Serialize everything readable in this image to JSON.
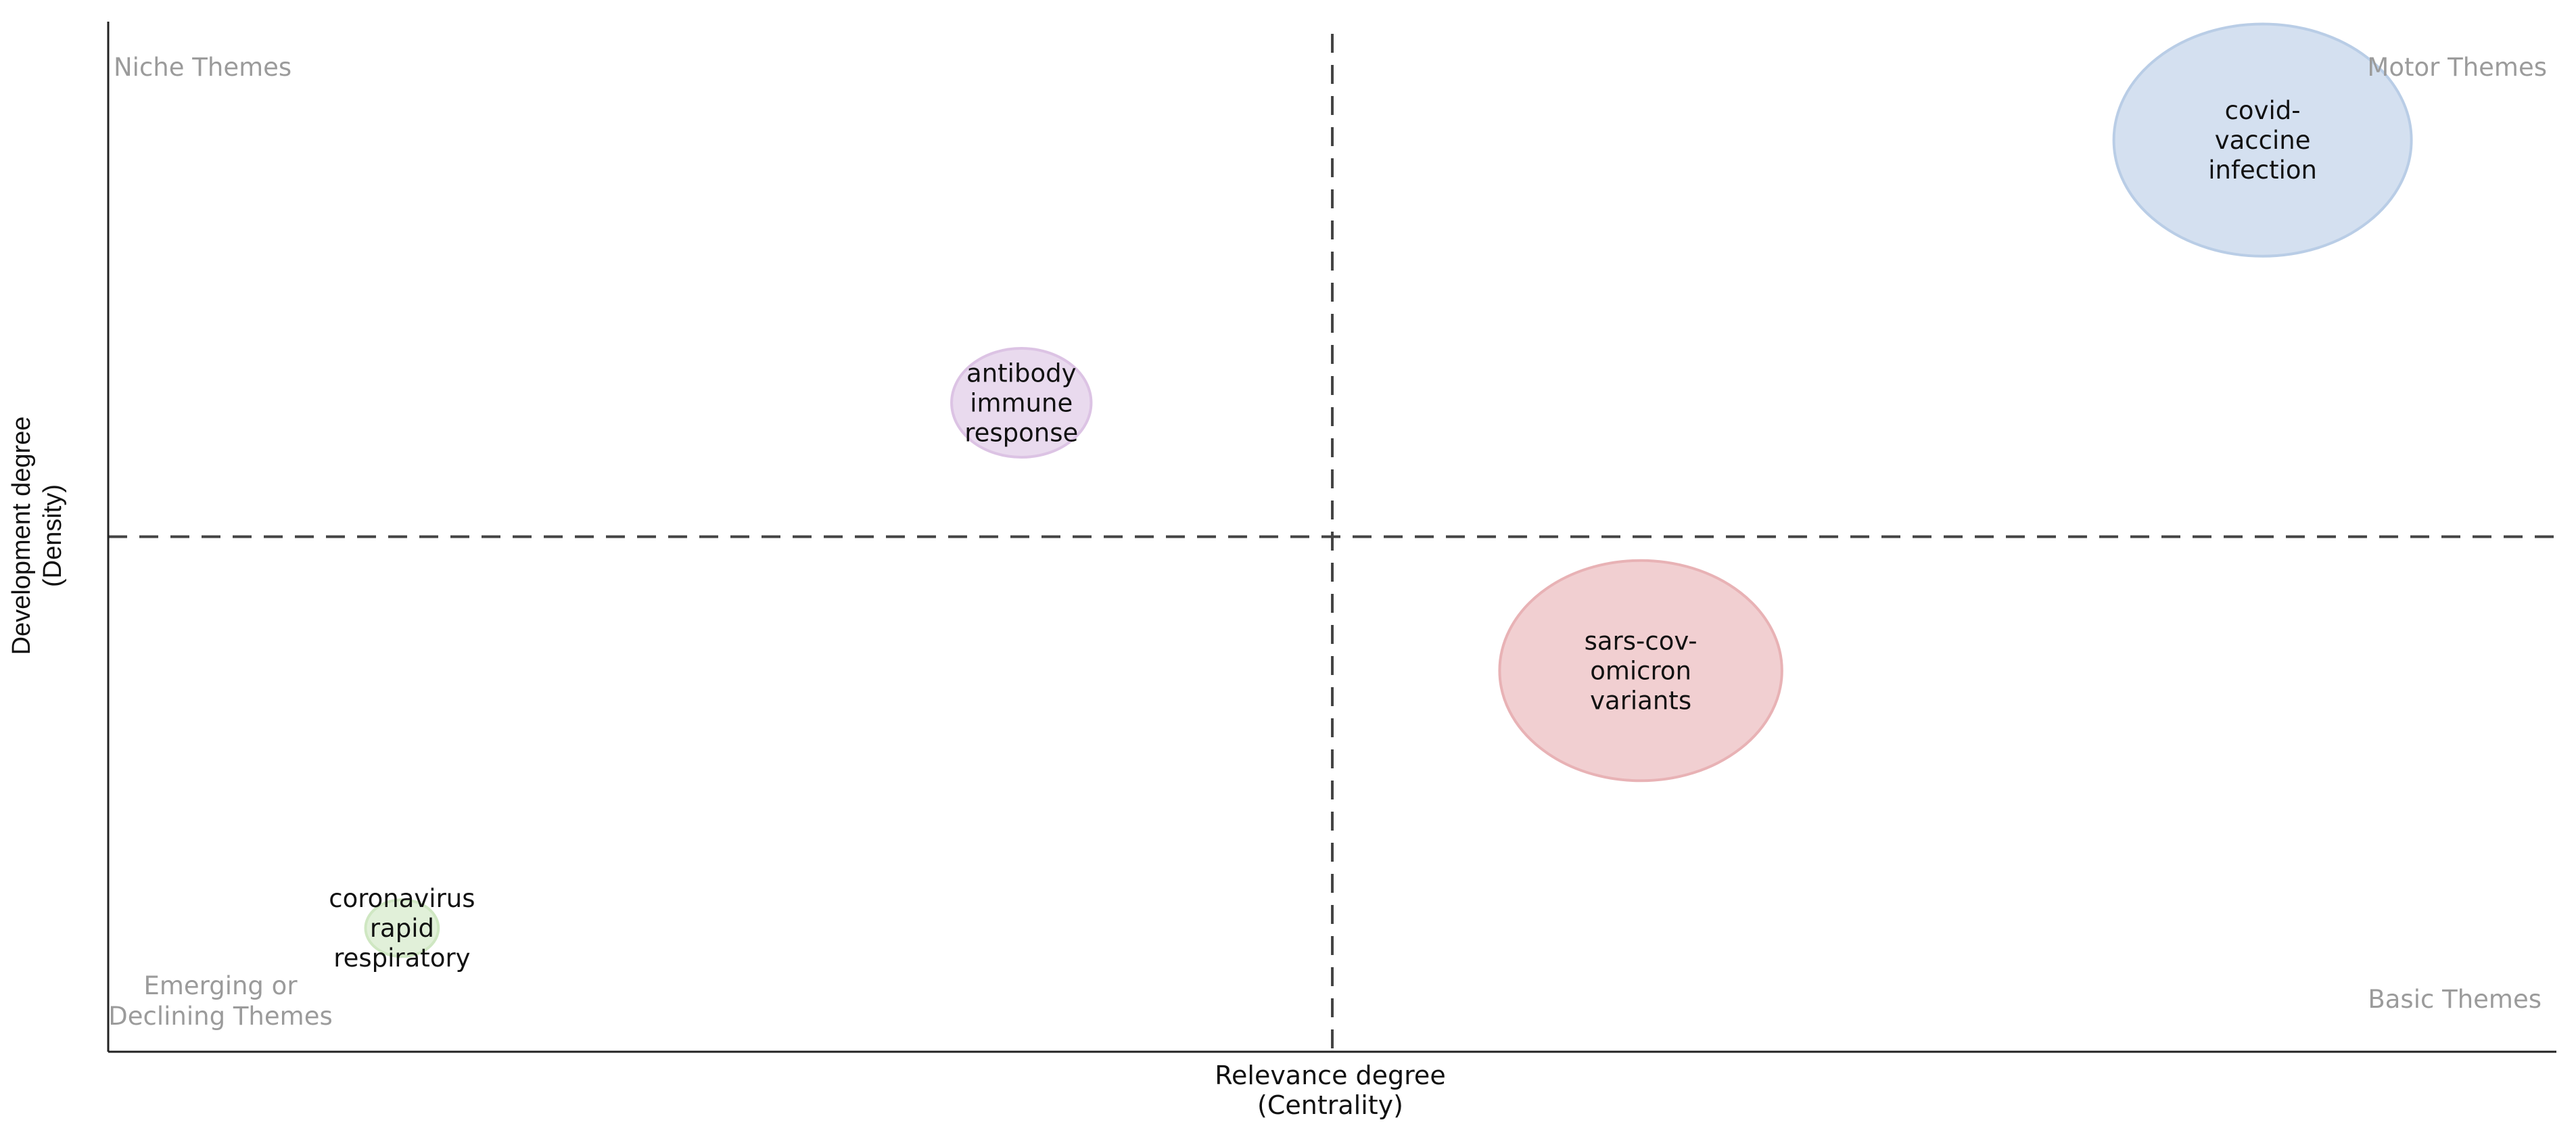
{
  "chart_data": {
    "type": "scatter",
    "title": "",
    "xlabel": "Relevance degree",
    "xlabel_sub": "(Centrality)",
    "ylabel": "Development degree",
    "ylabel_sub": "(Density)",
    "quadrant_labels": {
      "top_left": "Niche Themes",
      "top_right": "Motor Themes",
      "bottom_left_line1": "Emerging or",
      "bottom_left_line2": "Declining Themes",
      "bottom_right": "Basic Themes"
    },
    "xlim": [
      0,
      100
    ],
    "ylim": [
      0,
      100
    ],
    "x_divider": 50,
    "y_divider": 50,
    "grid": false,
    "legend": "none",
    "points": [
      {
        "label": [
          "covid-",
          "vaccine",
          "infection"
        ],
        "x": 88,
        "y": 88.5,
        "size": 100,
        "color": "#b9cde6"
      },
      {
        "label": [
          "antibody",
          "immune",
          "response"
        ],
        "x": 37.3,
        "y": 63,
        "size": 22,
        "color": "#dcc3e4"
      },
      {
        "label": [
          "sars-cov-",
          "omicron",
          "variants"
        ],
        "x": 62.6,
        "y": 37,
        "size": 90,
        "color": "#e8b2b5"
      },
      {
        "label": [
          "coronavirus",
          "rapid",
          "respiratory"
        ],
        "x": 12,
        "y": 12,
        "size": 6,
        "color": "#cfe7c2"
      }
    ]
  }
}
